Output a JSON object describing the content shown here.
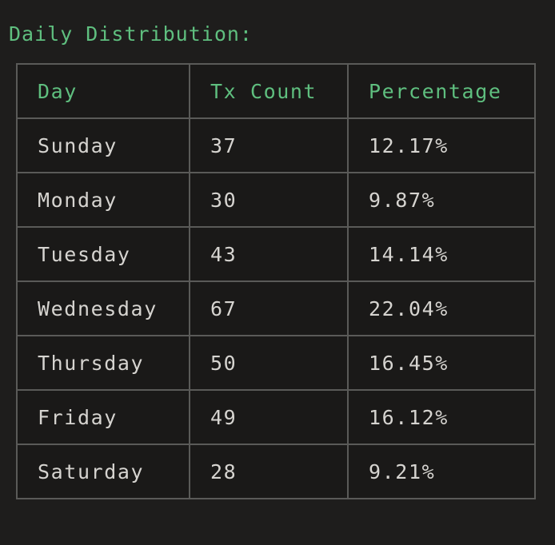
{
  "title": "Daily Distribution:",
  "colors": {
    "background": "#1e1d1c",
    "header_text": "#5fbf7f",
    "cell_text": "#d6d4d0",
    "border": "#5a5a58"
  },
  "table": {
    "headers": [
      "Day",
      "Tx Count",
      "Percentage"
    ],
    "rows": [
      {
        "day": "Sunday",
        "count": "37",
        "pct": "12.17%"
      },
      {
        "day": "Monday",
        "count": "30",
        "pct": "9.87%"
      },
      {
        "day": "Tuesday",
        "count": "43",
        "pct": "14.14%"
      },
      {
        "day": "Wednesday",
        "count": "67",
        "pct": "22.04%"
      },
      {
        "day": "Thursday",
        "count": "50",
        "pct": "16.45%"
      },
      {
        "day": "Friday",
        "count": "49",
        "pct": "16.12%"
      },
      {
        "day": "Saturday",
        "count": "28",
        "pct": "9.21%"
      }
    ]
  }
}
